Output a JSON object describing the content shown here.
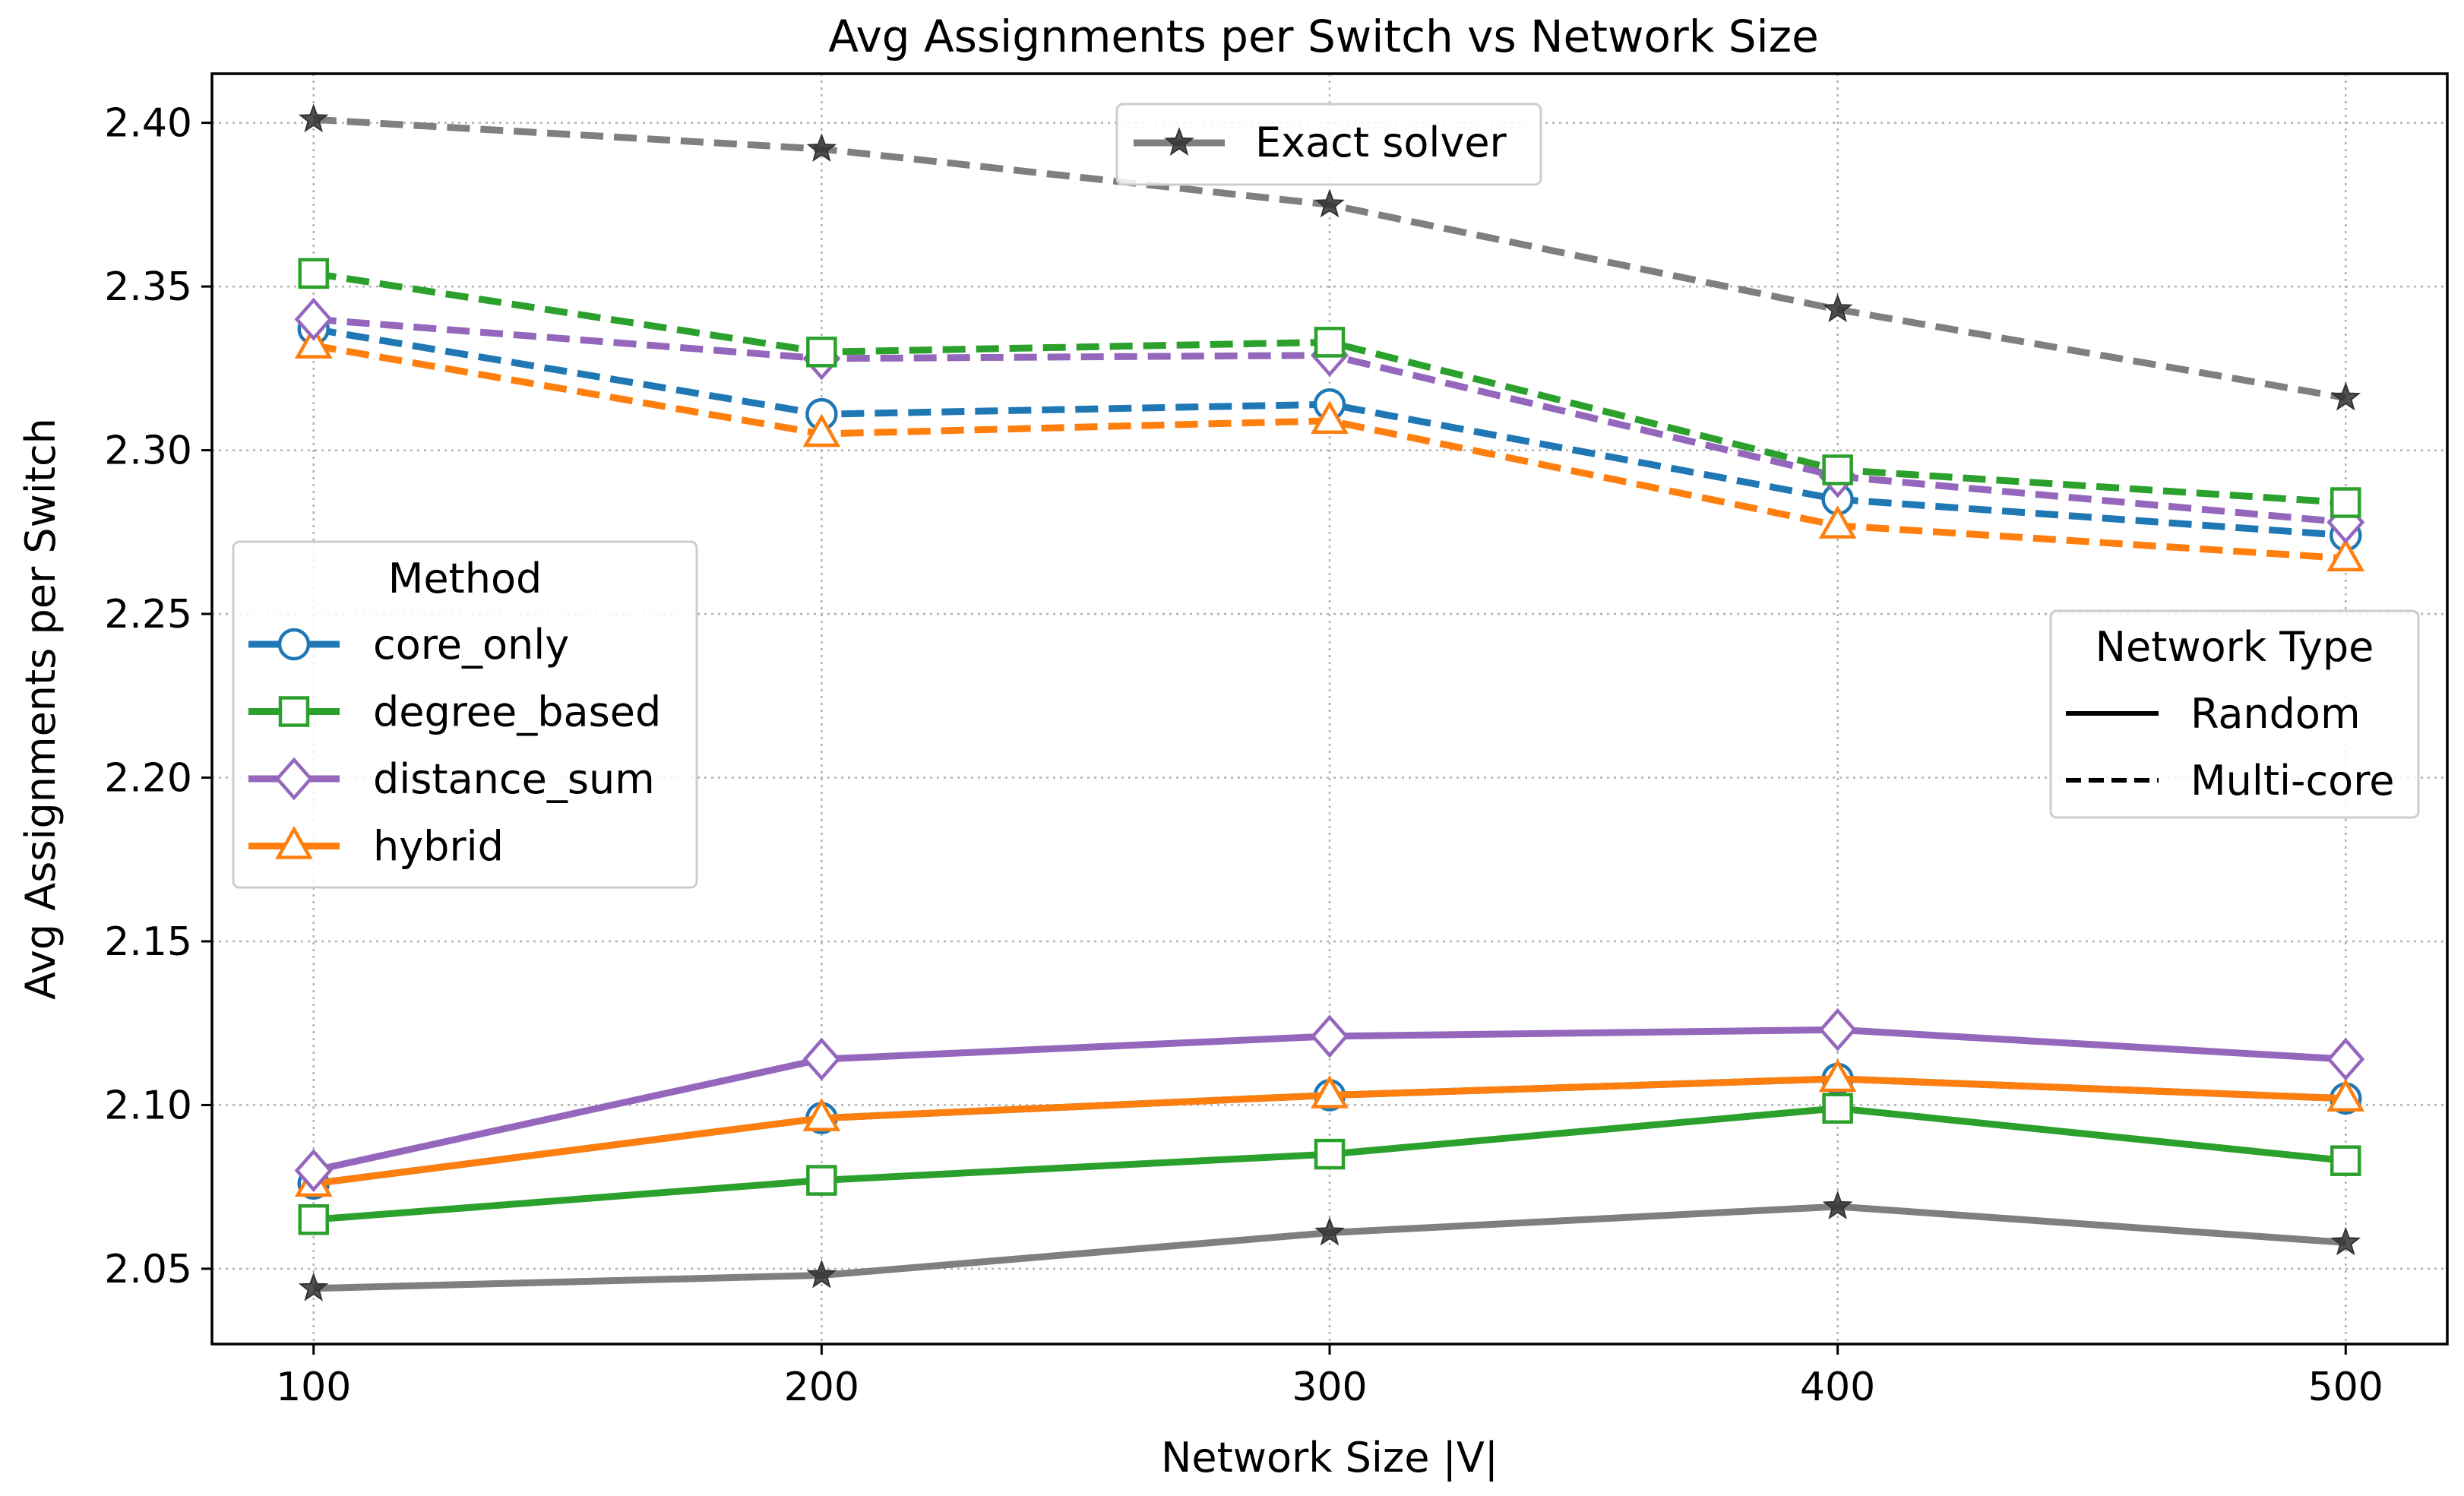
{
  "chart_data": {
    "type": "line",
    "title": "Avg Assignments per Switch vs Network Size",
    "xlabel": "Network Size |V|",
    "ylabel": "Avg Assignments per Switch",
    "x": [
      100,
      200,
      300,
      400,
      500
    ],
    "xlim": [
      80,
      520
    ],
    "ylim": [
      2.027,
      2.415
    ],
    "xticks": [
      100,
      200,
      300,
      400,
      500
    ],
    "yticks": [
      2.05,
      2.1,
      2.15,
      2.2,
      2.25,
      2.3,
      2.35,
      2.4
    ],
    "ytick_labels": [
      "2.05",
      "2.10",
      "2.15",
      "2.20",
      "2.25",
      "2.30",
      "2.35",
      "2.40"
    ],
    "grid": true,
    "series": [
      {
        "name": "core_only",
        "network": "Random",
        "color": "#1f77b4",
        "marker": "circle",
        "dashed": false,
        "values": [
          2.076,
          2.096,
          2.103,
          2.108,
          2.102
        ]
      },
      {
        "name": "degree_based",
        "network": "Random",
        "color": "#2ca02c",
        "marker": "square",
        "dashed": false,
        "values": [
          2.065,
          2.077,
          2.085,
          2.099,
          2.083
        ]
      },
      {
        "name": "hybrid",
        "network": "Random",
        "color": "#ff7f0e",
        "marker": "triangle",
        "dashed": false,
        "values": [
          2.076,
          2.096,
          2.103,
          2.108,
          2.102
        ]
      },
      {
        "name": "distance_sum",
        "network": "Random",
        "color": "#9467bd",
        "marker": "diamond",
        "dashed": false,
        "values": [
          2.08,
          2.114,
          2.121,
          2.123,
          2.114
        ]
      },
      {
        "name": "Exact solver",
        "network": "Random",
        "color": "#7f7f7f",
        "marker": "star",
        "dashed": false,
        "values": [
          2.044,
          2.048,
          2.061,
          2.069,
          2.058
        ]
      },
      {
        "name": "core_only",
        "network": "Multi-core",
        "color": "#1f77b4",
        "marker": "circle",
        "dashed": true,
        "values": [
          2.337,
          2.311,
          2.314,
          2.285,
          2.274
        ]
      },
      {
        "name": "hybrid",
        "network": "Multi-core",
        "color": "#ff7f0e",
        "marker": "triangle",
        "dashed": true,
        "values": [
          2.332,
          2.305,
          2.309,
          2.277,
          2.267
        ]
      },
      {
        "name": "distance_sum",
        "network": "Multi-core",
        "color": "#9467bd",
        "marker": "diamond",
        "dashed": true,
        "values": [
          2.34,
          2.328,
          2.329,
          2.292,
          2.278
        ]
      },
      {
        "name": "degree_based",
        "network": "Multi-core",
        "color": "#2ca02c",
        "marker": "square",
        "dashed": true,
        "values": [
          2.354,
          2.33,
          2.333,
          2.294,
          2.284
        ]
      },
      {
        "name": "Exact solver",
        "network": "Multi-core",
        "color": "#7f7f7f",
        "marker": "star",
        "dashed": true,
        "values": [
          2.401,
          2.392,
          2.375,
          2.343,
          2.316
        ]
      }
    ],
    "legends": {
      "exact": {
        "label": "Exact solver"
      },
      "method": {
        "title": "Method",
        "entries": [
          {
            "label": "core_only",
            "color": "#1f77b4",
            "marker": "circle"
          },
          {
            "label": "degree_based",
            "color": "#2ca02c",
            "marker": "square"
          },
          {
            "label": "distance_sum",
            "color": "#9467bd",
            "marker": "diamond"
          },
          {
            "label": "hybrid",
            "color": "#ff7f0e",
            "marker": "triangle"
          }
        ]
      },
      "network": {
        "title": "Network Type",
        "entries": [
          {
            "label": "Random",
            "dashed": false
          },
          {
            "label": "Multi-core",
            "dashed": true
          }
        ]
      }
    }
  }
}
